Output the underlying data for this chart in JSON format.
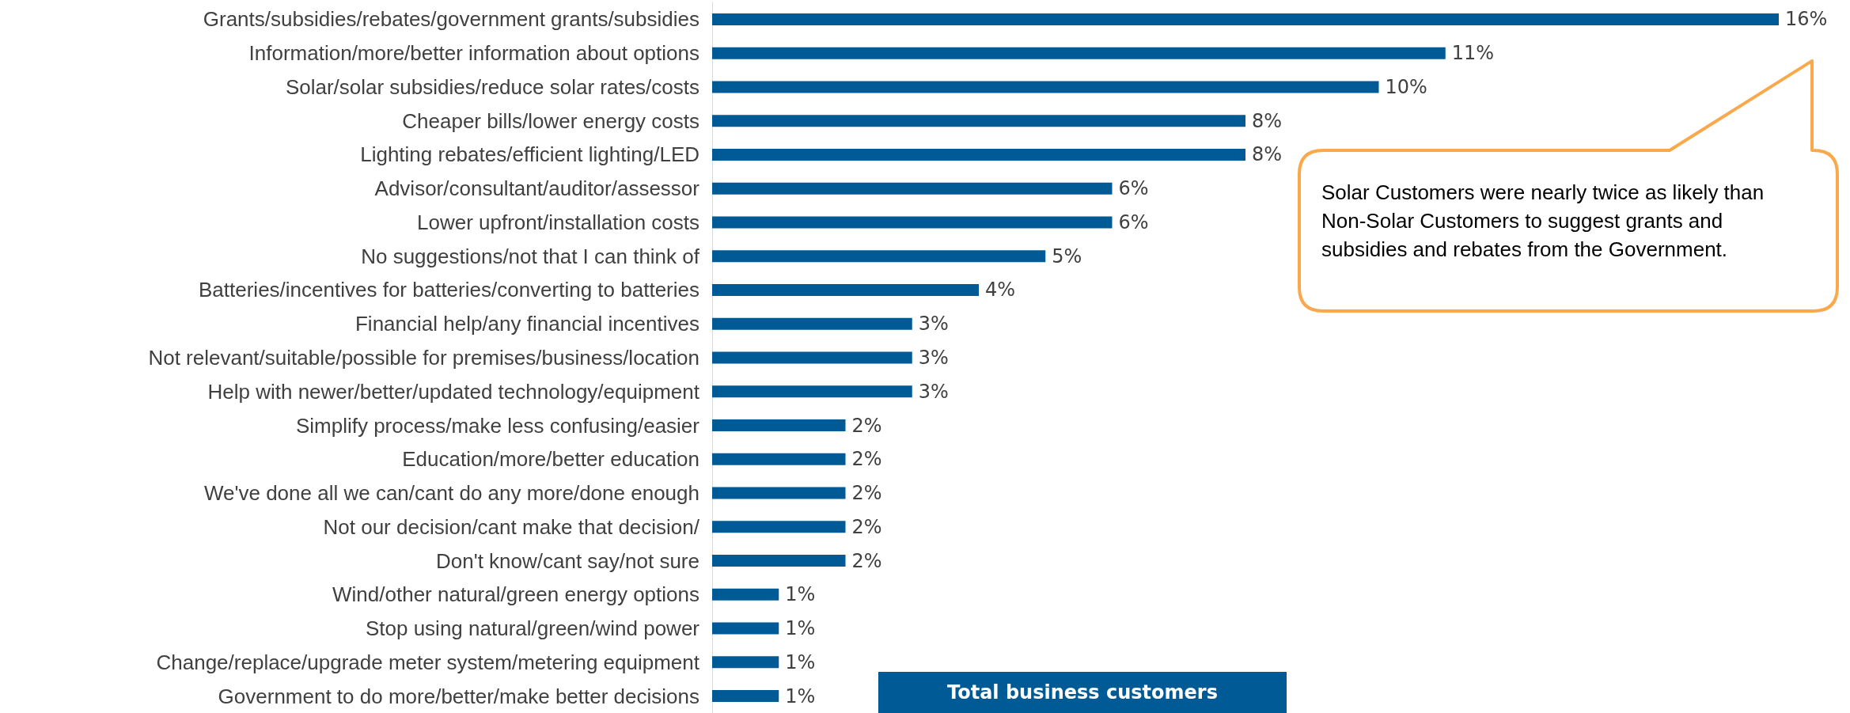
{
  "chart_data": {
    "type": "bar",
    "orientation": "horizontal",
    "title": "Total business customers",
    "categories": [
      "Grants/subsidies/rebates/government grants/subsidies",
      "Information/more/better information about options",
      "Solar/solar subsidies/reduce solar rates/costs",
      "Cheaper bills/lower energy costs",
      "Lighting rebates/efficient lighting/LED",
      "Advisor/consultant/auditor/assessor",
      "Lower upfront/installation costs",
      "No suggestions/not that I can think of",
      "Batteries/incentives for batteries/converting to batteries",
      "Financial help/any financial incentives",
      "Not relevant/suitable/possible for premises/business/location",
      "Help with newer/better/updated technology/equipment",
      "Simplify process/make less confusing/easier",
      "Education/more/better education",
      "We've done all we can/cant do any more/done enough",
      "Not our decision/cant make that decision/",
      "Don't know/cant say/not sure",
      "Wind/other natural/green energy options",
      "Stop using natural/green/wind power",
      "Change/replace/upgrade meter system/metering equipment",
      "Government to do more/better/make better decisions"
    ],
    "values": [
      16,
      11,
      10,
      8,
      8,
      6,
      6,
      5,
      4,
      3,
      3,
      3,
      2,
      2,
      2,
      2,
      2,
      1,
      1,
      1,
      1
    ],
    "value_labels": [
      "16%",
      "11%",
      "10%",
      "8%",
      "8%",
      "6%",
      "6%",
      "5%",
      "4%",
      "3%",
      "3%",
      "3%",
      "2%",
      "2%",
      "2%",
      "2%",
      "2%",
      "1%",
      "1%",
      "1%",
      "1%"
    ],
    "color": "#005a96",
    "annotations": [
      "Solar Customers were nearly twice as likely than Non-Solar Customers to suggest grants and subsidies and rebates from the Government."
    ],
    "grid": false,
    "tick_labels": "y"
  }
}
